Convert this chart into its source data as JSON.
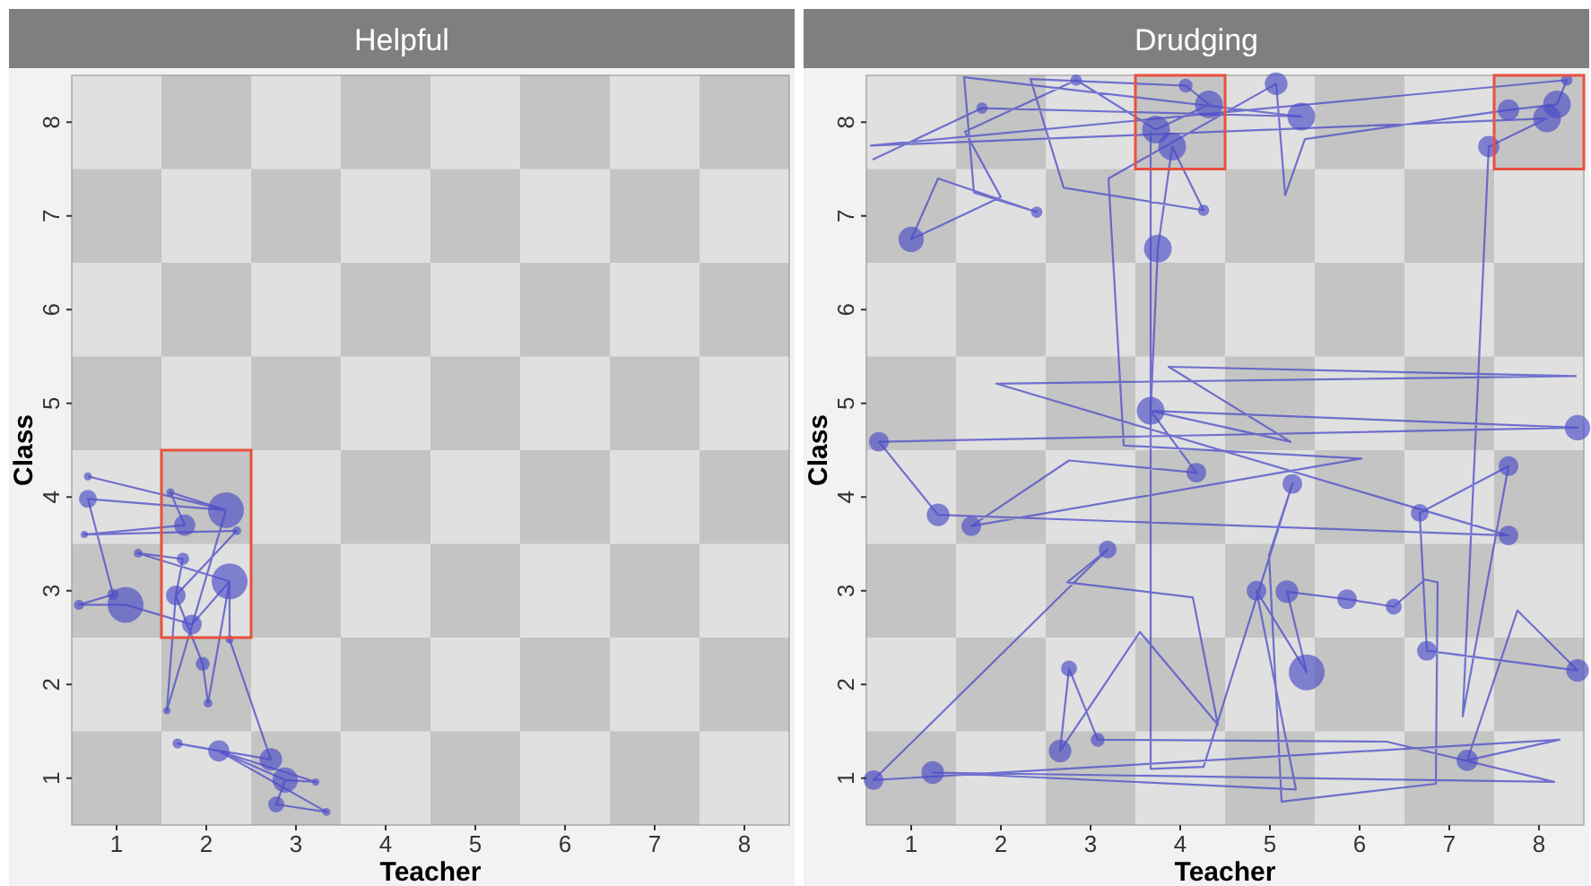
{
  "chart_data": [
    {
      "type": "line",
      "title": "Helpful",
      "xlabel": "Teacher",
      "ylabel": "Class",
      "xlim": [
        0.5,
        8.5
      ],
      "ylim": [
        0.5,
        8.5
      ],
      "xticks": [
        1,
        2,
        3,
        4,
        5,
        6,
        7,
        8
      ],
      "yticks": [
        1,
        2,
        3,
        4,
        5,
        6,
        7,
        8
      ],
      "grid": false,
      "series": [
        {
          "color": "#4b4bc8",
          "x": [
            0.68,
            2.22,
            1.6,
            1.76,
            0.64,
            2.34,
            1.66,
            1.74,
            1.24,
            2.26,
            1.84,
            1.1,
            0.58,
            0.96,
            0.68,
            2.22,
            1.56,
            1.66,
            1.96,
            2.02,
            2.26,
            2.26,
            2.72,
            1.68,
            2.14,
            2.88,
            3.22,
            2.14,
            3.34,
            2.78,
            2.88
          ],
          "values": [
            4.22,
            3.86,
            4.05,
            3.7,
            3.6,
            3.64,
            2.95,
            3.34,
            3.4,
            3.1,
            2.64,
            2.85,
            2.85,
            2.96,
            3.98,
            3.86,
            1.72,
            2.95,
            2.22,
            1.8,
            3.1,
            2.48,
            1.2,
            1.37,
            1.29,
            0.98,
            0.96,
            1.29,
            0.64,
            0.72,
            0.98
          ]
        },
        {
          "type": "bubble",
          "color": "#4b4bc8",
          "x": [
            0.68,
            2.22,
            1.76,
            2.26,
            1.1,
            1.66,
            0.58,
            1.24,
            0.64,
            1.74,
            1.84,
            1.96,
            2.02,
            1.56,
            1.68,
            2.14,
            2.72,
            2.88,
            3.22,
            2.78,
            3.34,
            2.34,
            0.68,
            1.6,
            2.26,
            0.96
          ],
          "values": [
            3.98,
            3.86,
            3.7,
            3.1,
            2.85,
            2.95,
            2.85,
            3.4,
            3.6,
            3.34,
            2.64,
            2.22,
            1.8,
            1.72,
            1.37,
            1.29,
            1.2,
            0.98,
            0.96,
            0.72,
            0.64,
            3.64,
            4.22,
            4.05,
            2.48,
            2.96
          ],
          "sizes": [
            0.25,
            1,
            0.35,
            1,
            1,
            0.3,
            0.08,
            0.06,
            0.04,
            0.12,
            0.3,
            0.15,
            0.06,
            0.04,
            0.08,
            0.35,
            0.4,
            0.5,
            0.04,
            0.2,
            0.05,
            0.06,
            0.05,
            0.05,
            0.05,
            0.1
          ]
        }
      ]
    },
    {
      "type": "line",
      "title": "Drudging",
      "xlabel": "Teacher",
      "ylabel": "Class",
      "xlim": [
        0.5,
        8.5
      ],
      "ylim": [
        0.5,
        8.5
      ],
      "xticks": [
        1,
        2,
        3,
        4,
        5,
        6,
        7,
        8
      ],
      "yticks": [
        1,
        2,
        3,
        4,
        5,
        6,
        7,
        8
      ],
      "grid": false,
      "series": [
        {
          "color": "#4b4bc8",
          "x": [
            0.57,
            1.79,
            5.35,
            1.59,
            1.7,
            2.4,
            1.3,
            1.0,
            2.0,
            1.6,
            2.84,
            3.73,
            4.32,
            4.06,
            2.33,
            2.7,
            4.26,
            3.91,
            3.75,
            3.67,
            8.43,
            0.64,
            1.3,
            7.66,
            1.95,
            8.41,
            3.87,
            5.23,
            3.67,
            4.18,
            2.76,
            1.67,
            6.02,
            3.37,
            3.2,
            5.07,
            5.17,
            5.39,
            7.66,
            8.2,
            8.31,
            0.55,
            8.09,
            7.44,
            7.15,
            7.66,
            6.67,
            6.75,
            8.43,
            7.76,
            7.2,
            8.23,
            0.58,
            3.19,
            2.74,
            4.14,
            4.42,
            3.55,
            2.66,
            2.76,
            3.08,
            6.3,
            8.17,
            1.24,
            5.29,
            4.85,
            5.41,
            5.19,
            5.86,
            6.38,
            6.73,
            6.87,
            6.85,
            5.13,
            4.99,
            5.25,
            4.26,
            3.67,
            3.67
          ],
          "values": [
            7.6,
            8.15,
            8.06,
            8.48,
            7.25,
            7.04,
            7.4,
            6.75,
            7.2,
            7.9,
            8.45,
            7.92,
            8.19,
            8.39,
            8.46,
            7.3,
            7.06,
            7.74,
            6.65,
            4.92,
            4.74,
            4.59,
            3.81,
            3.59,
            5.21,
            5.29,
            5.39,
            4.59,
            4.92,
            4.26,
            4.39,
            3.69,
            4.41,
            4.55,
            7.4,
            8.41,
            7.22,
            7.82,
            8.13,
            8.19,
            8.45,
            7.75,
            8.04,
            7.74,
            1.66,
            4.33,
            3.83,
            2.36,
            2.15,
            2.79,
            1.19,
            1.41,
            0.98,
            3.44,
            3.09,
            2.93,
            1.57,
            2.56,
            1.29,
            2.17,
            1.41,
            1.39,
            0.96,
            1.06,
            0.88,
            3.0,
            2.13,
            2.99,
            2.91,
            2.83,
            3.12,
            3.09,
            0.94,
            0.75,
            3.38,
            4.14,
            1.12,
            1.1,
            7.9
          ]
        },
        {
          "type": "bubble",
          "color": "#4b4bc8",
          "x": [
            1.0,
            5.07,
            4.06,
            4.32,
            3.73,
            3.91,
            5.35,
            7.66,
            8.2,
            8.09,
            8.31,
            7.44,
            2.84,
            1.79,
            2.4,
            4.26,
            3.75,
            3.67,
            8.43,
            0.64,
            4.18,
            5.25,
            7.66,
            7.66,
            1.3,
            1.67,
            6.67,
            0.58,
            1.24,
            2.66,
            2.76,
            3.08,
            3.19,
            5.41,
            5.19,
            5.86,
            6.38,
            6.75,
            8.43,
            7.2,
            4.85
          ],
          "values": [
            6.75,
            8.41,
            8.39,
            8.19,
            7.92,
            7.74,
            8.06,
            8.13,
            8.19,
            8.04,
            8.45,
            7.74,
            8.45,
            8.15,
            7.04,
            7.06,
            6.65,
            4.92,
            4.74,
            4.59,
            4.26,
            4.14,
            4.33,
            3.59,
            3.81,
            3.69,
            3.83,
            0.98,
            1.06,
            1.29,
            2.17,
            1.41,
            3.44,
            2.13,
            2.99,
            2.91,
            2.83,
            2.36,
            2.15,
            1.19,
            3.0
          ],
          "sizes": [
            0.5,
            0.4,
            0.15,
            0.6,
            0.6,
            0.6,
            0.6,
            0.35,
            0.6,
            0.6,
            0.1,
            0.35,
            0.1,
            0.1,
            0.1,
            0.1,
            0.6,
            0.6,
            0.5,
            0.3,
            0.3,
            0.3,
            0.3,
            0.3,
            0.4,
            0.3,
            0.25,
            0.3,
            0.4,
            0.4,
            0.2,
            0.15,
            0.25,
            1,
            0.4,
            0.3,
            0.2,
            0.3,
            0.4,
            0.35,
            0.3
          ]
        }
      ]
    }
  ]
}
